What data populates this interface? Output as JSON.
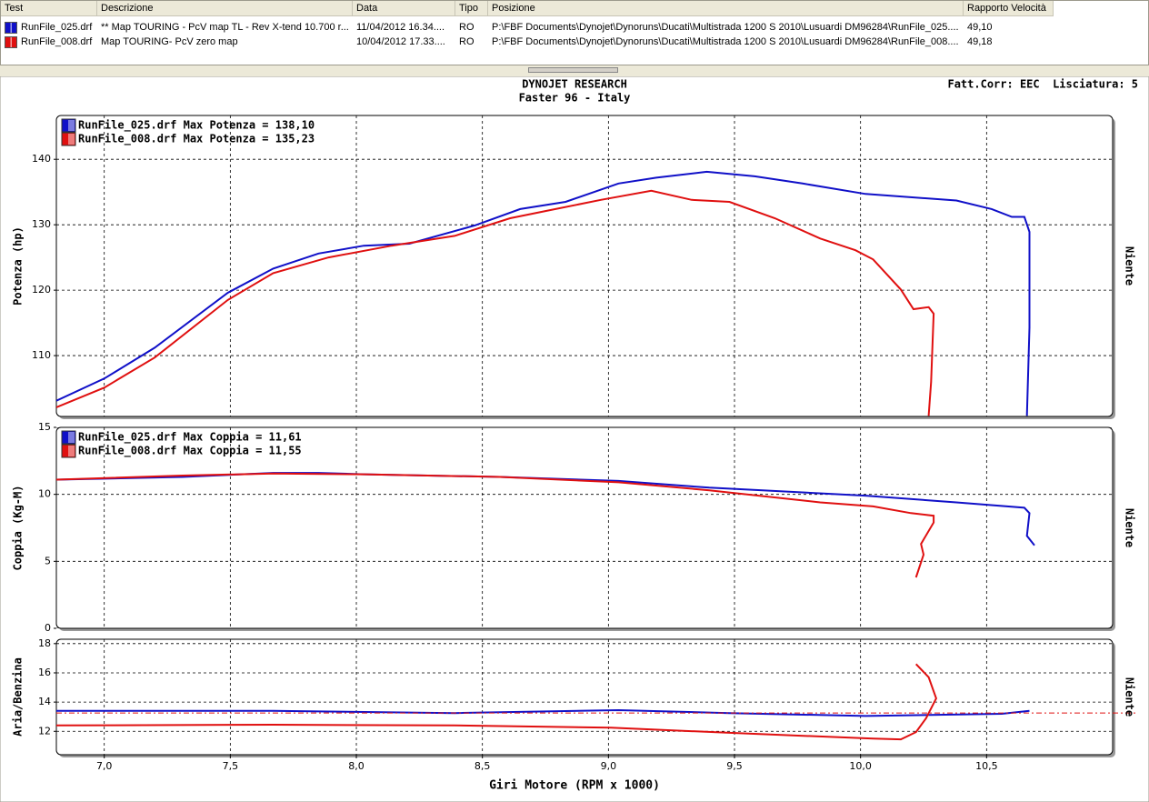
{
  "table": {
    "columns": [
      "Test",
      "Descrizione",
      "Data",
      "Tipo",
      "Posizione",
      "Rapporto Velocità"
    ],
    "rows": [
      [
        "RunFile_025.drf",
        "** Map TOURING - PcV map TL - Rev X-tend 10.700 r...",
        "11/04/2012 16.34....",
        "RO",
        "P:\\FBF Documents\\Dynojet\\Dynoruns\\Ducati\\Multistrada 1200 S 2010\\Lusuardi DM96284\\RunFile_025....",
        "49,10"
      ],
      [
        "RunFile_008.drf",
        "Map TOURING- PcV zero map",
        "10/04/2012 17.33....",
        "RO",
        "P:\\FBF Documents\\Dynojet\\Dynoruns\\Ducati\\Multistrada 1200 S 2010\\Lusuardi DM96284\\RunFile_008....",
        "49,18"
      ]
    ],
    "row_colors": [
      "#1010c8",
      "#e01010"
    ]
  },
  "header": {
    "title": "DYNOJET RESEARCH",
    "subtitle": "Faster 96 - Italy",
    "settings": "Fatt.Corr: EEC  Lisciatura: 5"
  },
  "chart_data": [
    {
      "type": "line",
      "ylabel": "Potenza (hp)",
      "right_label": "Niente",
      "grid": true,
      "xlim": [
        6.81,
        11.0
      ],
      "ylim": [
        100.7,
        146.7
      ],
      "yticks": [
        110,
        120,
        130,
        140
      ],
      "series": [
        {
          "name": "RunFile_025.drf Max Potenza = 138,10",
          "color": "#1010c8",
          "x": [
            6.81,
            7.0,
            7.2,
            7.49,
            7.67,
            7.85,
            8.03,
            8.21,
            8.47,
            8.65,
            8.83,
            9.04,
            9.19,
            9.39,
            9.58,
            9.77,
            10.02,
            10.38,
            10.52,
            10.6,
            10.65,
            10.67,
            10.67,
            10.66
          ],
          "values": [
            103.1,
            106.5,
            111.2,
            119.6,
            123.3,
            125.6,
            126.8,
            127.1,
            129.9,
            132.4,
            133.5,
            136.3,
            137.2,
            138.1,
            137.4,
            136.3,
            134.7,
            133.7,
            132.4,
            131.2,
            131.2,
            128.9,
            114.3,
            100.8
          ]
        },
        {
          "name": "RunFile_008.drf Max Potenza = 135,23",
          "color": "#e01010",
          "x": [
            6.81,
            7.0,
            7.2,
            7.49,
            7.67,
            7.89,
            8.14,
            8.39,
            8.61,
            8.75,
            8.97,
            9.17,
            9.33,
            9.48,
            9.66,
            9.84,
            9.98,
            10.05,
            10.16,
            10.21,
            10.27,
            10.29,
            10.28,
            10.27
          ],
          "values": [
            102.1,
            105.1,
            109.7,
            118.5,
            122.6,
            125.0,
            126.8,
            128.3,
            131.0,
            132.1,
            133.8,
            135.2,
            133.8,
            133.5,
            131.0,
            127.9,
            126.1,
            124.7,
            120.1,
            117.1,
            117.4,
            116.4,
            106.0,
            100.8
          ]
        }
      ]
    },
    {
      "type": "line",
      "ylabel": "Coppia (Kg-M)",
      "right_label": "Niente",
      "grid": true,
      "xlim": [
        6.81,
        11.0
      ],
      "ylim": [
        0,
        15
      ],
      "yticks": [
        0,
        5,
        10,
        15
      ],
      "series": [
        {
          "name": "RunFile_025.drf Max Coppia = 11,61",
          "color": "#1010c8",
          "x": [
            6.81,
            7.31,
            7.67,
            7.85,
            8.03,
            8.57,
            9.04,
            9.4,
            10.02,
            10.38,
            10.65,
            10.67,
            10.66,
            10.69
          ],
          "values": [
            11.1,
            11.3,
            11.6,
            11.6,
            11.5,
            11.3,
            11.0,
            10.5,
            9.9,
            9.4,
            9.0,
            8.6,
            6.9,
            6.2
          ]
        },
        {
          "name": "RunFile_008.drf Max Coppia = 11,55",
          "color": "#e01010",
          "x": [
            6.81,
            7.31,
            7.67,
            8.03,
            8.57,
            9.04,
            9.4,
            9.84,
            10.05,
            10.2,
            10.29,
            10.29,
            10.24,
            10.25,
            10.22
          ],
          "values": [
            11.1,
            11.4,
            11.55,
            11.5,
            11.3,
            10.9,
            10.3,
            9.4,
            9.1,
            8.6,
            8.4,
            7.9,
            6.3,
            5.5,
            3.8
          ]
        }
      ]
    },
    {
      "type": "line",
      "ylabel": "Aria/Benzina",
      "xlabel": "Giri Motore (RPM x 1000)",
      "right_label": "Niente",
      "grid": true,
      "xlim": [
        6.81,
        11.0
      ],
      "ylim": [
        10.4,
        18.3
      ],
      "yticks": [
        12,
        14,
        16,
        18
      ],
      "xticks": [
        {
          "value": 7.0,
          "label": "7,0"
        },
        {
          "value": 7.5,
          "label": "7,5"
        },
        {
          "value": 8.0,
          "label": "8,0"
        },
        {
          "value": 8.5,
          "label": "8,5"
        },
        {
          "value": 9.0,
          "label": "9,0"
        },
        {
          "value": 9.5,
          "label": "9,5"
        },
        {
          "value": 10.0,
          "label": "10,0"
        },
        {
          "value": 10.5,
          "label": "10,5"
        }
      ],
      "reference_line": 13.25,
      "reference_color": "#e01010",
      "series": [
        {
          "color": "#1010c8",
          "x": [
            6.81,
            7.67,
            8.39,
            9.04,
            9.48,
            10.02,
            10.56,
            10.67
          ],
          "values": [
            13.4,
            13.4,
            13.25,
            13.45,
            13.25,
            13.05,
            13.2,
            13.4
          ]
        },
        {
          "color": "#e01010",
          "x": [
            6.81,
            7.67,
            8.39,
            9.01,
            9.48,
            10.05,
            10.16,
            10.22,
            10.26,
            10.3,
            10.27,
            10.22
          ],
          "values": [
            12.4,
            12.45,
            12.4,
            12.25,
            11.9,
            11.5,
            11.45,
            11.95,
            12.9,
            14.25,
            15.7,
            16.6
          ]
        }
      ]
    }
  ]
}
